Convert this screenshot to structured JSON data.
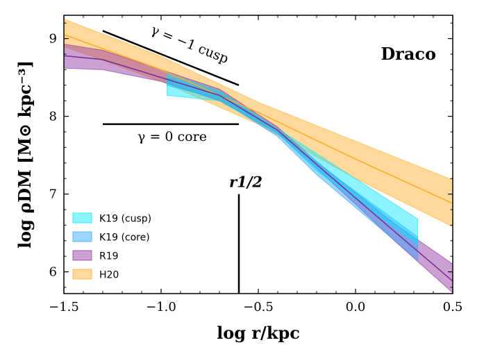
{
  "chart_data": {
    "type": "area",
    "title": "Draco",
    "xlabel": "log r/kpc",
    "ylabel": "log ρDM [M⊙ kpc⁻³]",
    "xlim": [
      -1.5,
      0.5
    ],
    "ylim": [
      5.72,
      9.3
    ],
    "x_ticks": [
      "−1.5",
      "−1.0",
      "−0.5",
      "0.0",
      "0.5"
    ],
    "y_ticks": [
      "6",
      "7",
      "8",
      "9"
    ],
    "x_tick_values": [
      -1.5,
      -1.0,
      -0.5,
      0.0,
      0.5
    ],
    "y_tick_values": [
      6,
      7,
      8,
      9
    ],
    "grid": false,
    "legend_position": "lower-left",
    "series": [
      {
        "name": "K19 (cusp)",
        "color": "#00e5ff",
        "opacity": 0.45,
        "x": [
          -0.97,
          -0.7,
          -0.4,
          -0.2,
          0.32
        ],
        "upper": [
          8.56,
          8.33,
          7.84,
          7.52,
          6.68
        ],
        "lower": [
          8.27,
          8.2,
          7.78,
          7.3,
          6.35
        ]
      },
      {
        "name": "K19 (core)",
        "color": "#29a3ff",
        "opacity": 0.45,
        "x": [
          -0.97,
          -0.7,
          -0.4,
          -0.2,
          0.32
        ],
        "upper": [
          8.5,
          8.31,
          7.82,
          7.4,
          6.45
        ],
        "lower": [
          8.4,
          8.22,
          7.74,
          7.25,
          6.15
        ]
      },
      {
        "name": "R19",
        "color": "#8b2c9e",
        "opacity": 0.45,
        "line_color": "#7a2a95",
        "x": [
          -1.5,
          -1.3,
          -1.0,
          -0.7,
          -0.4,
          -0.2,
          0.0,
          0.2,
          0.5
        ],
        "upper": [
          8.93,
          8.85,
          8.6,
          8.35,
          7.86,
          7.42,
          7.02,
          6.62,
          6.1
        ],
        "mid": [
          8.78,
          8.73,
          8.5,
          8.27,
          7.82,
          7.38,
          6.95,
          6.52,
          5.88
        ],
        "lower": [
          8.62,
          8.6,
          8.45,
          8.2,
          7.78,
          7.33,
          6.87,
          6.4,
          5.73
        ]
      },
      {
        "name": "H20",
        "color": "#ffaa22",
        "opacity": 0.45,
        "line_color": "#ffaa22",
        "x": [
          -1.5,
          -1.0,
          -0.5,
          0.0,
          0.5
        ],
        "upper": [
          9.25,
          8.77,
          8.18,
          7.68,
          7.18
        ],
        "mid": [
          9.05,
          8.6,
          8.05,
          7.45,
          6.88
        ],
        "lower": [
          8.9,
          8.45,
          7.9,
          7.2,
          6.58
        ]
      }
    ],
    "annotations": [
      {
        "id": "cusp",
        "text": "γ = −1 cusp",
        "x0": -1.3,
        "y0": 9.1,
        "x1": -0.6,
        "y1": 8.4
      },
      {
        "id": "core",
        "text": "γ = 0 core",
        "x0": -1.3,
        "y0": 7.9,
        "x1": -0.6,
        "y1": 7.9
      },
      {
        "id": "rhalf",
        "text": "r1/2",
        "x": -0.6,
        "y_top": 7.0
      }
    ]
  }
}
